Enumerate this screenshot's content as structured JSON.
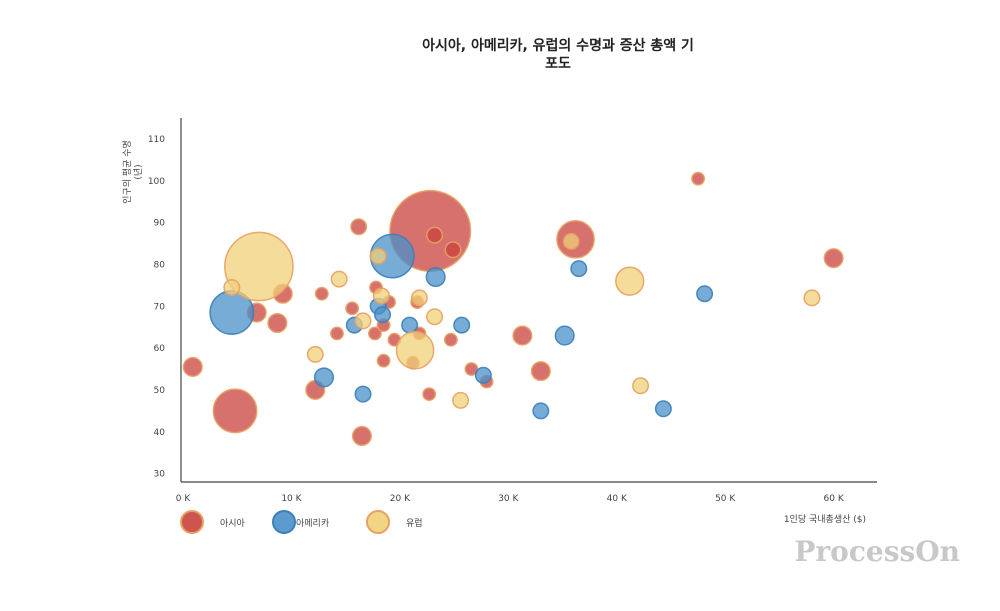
{
  "chart_data": {
    "type": "scatter",
    "subtype": "bubble",
    "title_line1": "아시아, 아메리카, 유럽의 수명과 증산 총액 기",
    "title_line2": "포도",
    "xlabel": "1인당 국내총생산 ($)",
    "ylabel_line1": "인구의 평균 수명",
    "ylabel_line2": "(년)",
    "xlim": [
      0,
      64000
    ],
    "ylim": [
      28,
      115
    ],
    "x_ticks": [
      0,
      10000,
      20000,
      30000,
      40000,
      50000,
      60000
    ],
    "x_tick_labels": [
      "0 K",
      "10 K",
      "20 K",
      "30 K",
      "40 K",
      "50 K",
      "60 K"
    ],
    "y_ticks": [
      30,
      40,
      50,
      60,
      70,
      80,
      90,
      100,
      110
    ],
    "y_tick_labels": [
      "30",
      "40",
      "50",
      "60",
      "70",
      "80",
      "90",
      "100",
      "110"
    ],
    "grid": false,
    "legend_position": "bottom-left",
    "series": [
      {
        "name": "아시아",
        "color": "#c9413d",
        "points": [
          {
            "x": 22800,
            "y": 88,
            "size": 26
          },
          {
            "x": 4800,
            "y": 45,
            "size": 14
          },
          {
            "x": 36200,
            "y": 86,
            "size": 12
          },
          {
            "x": 16200,
            "y": 89,
            "size": 5
          },
          {
            "x": 23200,
            "y": 87,
            "size": 5
          },
          {
            "x": 24900,
            "y": 83.5,
            "size": 5
          },
          {
            "x": 47500,
            "y": 100.5,
            "size": 4
          },
          {
            "x": 60000,
            "y": 81.5,
            "size": 6
          },
          {
            "x": 9200,
            "y": 73,
            "size": 6
          },
          {
            "x": 12800,
            "y": 73,
            "size": 4
          },
          {
            "x": 6800,
            "y": 68.5,
            "size": 6
          },
          {
            "x": 8700,
            "y": 66,
            "size": 6
          },
          {
            "x": 15600,
            "y": 69.5,
            "size": 4
          },
          {
            "x": 17800,
            "y": 74.5,
            "size": 4
          },
          {
            "x": 19000,
            "y": 71,
            "size": 4
          },
          {
            "x": 21600,
            "y": 71,
            "size": 4
          },
          {
            "x": 14200,
            "y": 63.5,
            "size": 4
          },
          {
            "x": 17700,
            "y": 63.5,
            "size": 4
          },
          {
            "x": 18500,
            "y": 65.5,
            "size": 4
          },
          {
            "x": 19500,
            "y": 62,
            "size": 4
          },
          {
            "x": 21800,
            "y": 63.5,
            "size": 4
          },
          {
            "x": 24700,
            "y": 62,
            "size": 4
          },
          {
            "x": 31300,
            "y": 63,
            "size": 6
          },
          {
            "x": 900,
            "y": 55.5,
            "size": 6
          },
          {
            "x": 18500,
            "y": 57,
            "size": 4
          },
          {
            "x": 21200,
            "y": 56.5,
            "size": 4
          },
          {
            "x": 26600,
            "y": 55,
            "size": 4
          },
          {
            "x": 33000,
            "y": 54.5,
            "size": 6
          },
          {
            "x": 12200,
            "y": 50,
            "size": 6
          },
          {
            "x": 22700,
            "y": 49,
            "size": 4
          },
          {
            "x": 28000,
            "y": 52,
            "size": 4
          },
          {
            "x": 16500,
            "y": 39,
            "size": 6
          }
        ]
      },
      {
        "name": "아메리카",
        "color": "#4a90c9",
        "points": [
          {
            "x": 4500,
            "y": 68.5,
            "size": 14
          },
          {
            "x": 19300,
            "y": 82,
            "size": 14
          },
          {
            "x": 23300,
            "y": 77,
            "size": 6
          },
          {
            "x": 36500,
            "y": 79,
            "size": 5
          },
          {
            "x": 48100,
            "y": 73,
            "size": 5
          },
          {
            "x": 18000,
            "y": 70,
            "size": 5
          },
          {
            "x": 18400,
            "y": 68,
            "size": 5
          },
          {
            "x": 15800,
            "y": 65.5,
            "size": 5
          },
          {
            "x": 20900,
            "y": 65.5,
            "size": 5
          },
          {
            "x": 25700,
            "y": 65.5,
            "size": 5
          },
          {
            "x": 35200,
            "y": 63,
            "size": 6
          },
          {
            "x": 13000,
            "y": 53,
            "size": 6
          },
          {
            "x": 27700,
            "y": 53.5,
            "size": 5
          },
          {
            "x": 16600,
            "y": 49,
            "size": 5
          },
          {
            "x": 33000,
            "y": 45,
            "size": 5
          },
          {
            "x": 44300,
            "y": 45.5,
            "size": 5
          }
        ]
      },
      {
        "name": "유럽",
        "color": "#f0d078",
        "points": [
          {
            "x": 7000,
            "y": 79.5,
            "size": 22
          },
          {
            "x": 21400,
            "y": 59.5,
            "size": 12
          },
          {
            "x": 41200,
            "y": 76,
            "size": 9
          },
          {
            "x": 35800,
            "y": 85.5,
            "size": 5
          },
          {
            "x": 14400,
            "y": 76.5,
            "size": 5
          },
          {
            "x": 18000,
            "y": 82,
            "size": 5
          },
          {
            "x": 4500,
            "y": 74.5,
            "size": 5
          },
          {
            "x": 18300,
            "y": 72.5,
            "size": 5
          },
          {
            "x": 21800,
            "y": 72,
            "size": 5
          },
          {
            "x": 23200,
            "y": 67.5,
            "size": 5
          },
          {
            "x": 16600,
            "y": 66.5,
            "size": 5
          },
          {
            "x": 12200,
            "y": 58.5,
            "size": 5
          },
          {
            "x": 42200,
            "y": 51,
            "size": 5
          },
          {
            "x": 25600,
            "y": 47.5,
            "size": 5
          },
          {
            "x": 58000,
            "y": 72,
            "size": 5
          }
        ]
      }
    ]
  },
  "watermark": "ProcessOn"
}
